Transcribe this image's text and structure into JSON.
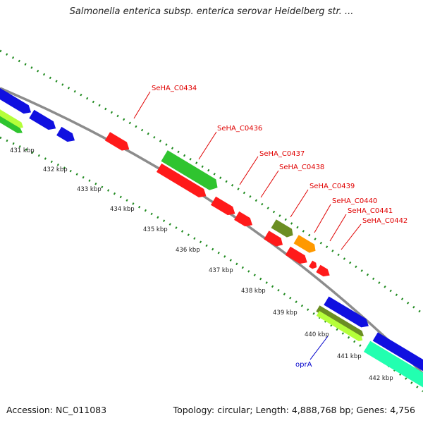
{
  "title": "Salmonella enterica subsp. enterica serovar Heidelberg str. ...",
  "accession_label": "Accession: NC_011083",
  "summary_label": "Topology: circular; Length: 4,888,768 bp; Genes: 4,756",
  "colors": {
    "backbone": "#8c8c8c",
    "tick": "#1f8a1f",
    "cds": "#ff1a1a",
    "blue": "#1010e0",
    "green": "#2fc42f",
    "olive": "#6b8e23",
    "orange": "#ff9900",
    "yellow_green": "#b5ff3a",
    "aqua": "#22ffb0",
    "label_red": "#e00000",
    "label_blue": "#0000cc"
  },
  "kbp_ticks": [
    "431 kbp",
    "432 kbp",
    "433 kbp",
    "434 kbp",
    "435 kbp",
    "436 kbp",
    "437 kbp",
    "438 kbp",
    "439 kbp",
    "440 kbp",
    "441 kbp",
    "442 kbp"
  ],
  "gene_labels": [
    "SeHA_C0434",
    "SeHA_C0436",
    "SeHA_C0437",
    "SeHA_C0438",
    "SeHA_C0439",
    "SeHA_C0440",
    "SeHA_C0441",
    "SeHA_C0442",
    "oprA"
  ]
}
